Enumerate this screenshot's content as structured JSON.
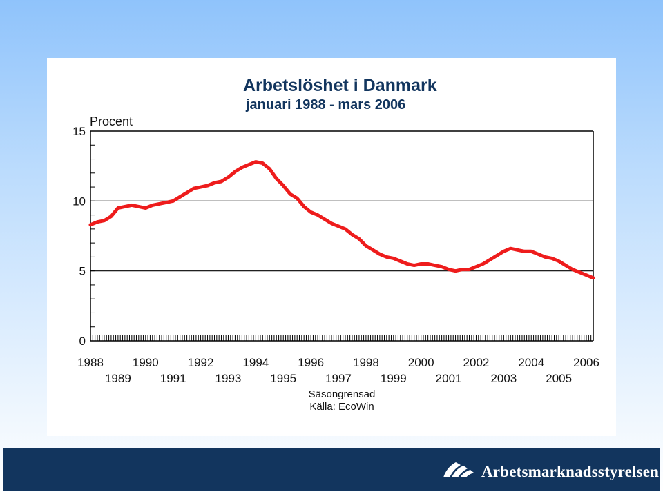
{
  "chart_data": {
    "type": "line",
    "title": "Arbetslöshet i Danmark",
    "subtitle": "januari 1988 - mars 2006",
    "ylabel": "Procent",
    "xlabel": "",
    "ylim": [
      0,
      15
    ],
    "xlim": [
      1988.0,
      2006.25
    ],
    "yticks": [
      {
        "value": 15,
        "label": "15"
      },
      {
        "value": 10,
        "label": "10"
      },
      {
        "value": 5,
        "label": "5"
      },
      {
        "value": 0,
        "label": "0"
      }
    ],
    "xticks_top_row": [
      "1988",
      "1990",
      "1992",
      "1994",
      "1996",
      "1998",
      "2000",
      "2002",
      "2004",
      "2006"
    ],
    "xticks_bottom_row": [
      "1989",
      "1991",
      "1993",
      "1995",
      "1997",
      "1999",
      "2001",
      "2003",
      "2005"
    ],
    "grid_y": [
      10,
      5
    ],
    "notes": [
      "Säsongrensad",
      "Källa: EcoWin"
    ],
    "line_color": "#ee1c1c",
    "series": [
      {
        "x": [
          1988.0,
          1988.25,
          1988.5,
          1988.75,
          1989.0,
          1989.25,
          1989.5,
          1989.75,
          1990.0,
          1990.25,
          1990.5,
          1990.75,
          1991.0,
          1991.25,
          1991.5,
          1991.75,
          1992.0,
          1992.25,
          1992.5,
          1992.75,
          1993.0,
          1993.25,
          1993.5,
          1993.75,
          1994.0,
          1994.25,
          1994.5,
          1994.75,
          1995.0,
          1995.25,
          1995.5,
          1995.75,
          1996.0,
          1996.25,
          1996.5,
          1996.75,
          1997.0,
          1997.25,
          1997.5,
          1997.75,
          1998.0,
          1998.25,
          1998.5,
          1998.75,
          1999.0,
          1999.25,
          1999.5,
          1999.75,
          2000.0,
          2000.25,
          2000.5,
          2000.75,
          2001.0,
          2001.25,
          2001.5,
          2001.75,
          2002.0,
          2002.25,
          2002.5,
          2002.75,
          2003.0,
          2003.25,
          2003.5,
          2003.75,
          2004.0,
          2004.25,
          2004.5,
          2004.75,
          2005.0,
          2005.25,
          2005.5,
          2005.75,
          2006.0,
          2006.25
        ],
        "values": [
          8.3,
          8.5,
          8.6,
          8.9,
          9.5,
          9.6,
          9.7,
          9.6,
          9.5,
          9.7,
          9.8,
          9.9,
          10.0,
          10.3,
          10.6,
          10.9,
          11.0,
          11.1,
          11.3,
          11.4,
          11.7,
          12.1,
          12.4,
          12.6,
          12.8,
          12.7,
          12.3,
          11.6,
          11.1,
          10.5,
          10.2,
          9.6,
          9.2,
          9.0,
          8.7,
          8.4,
          8.2,
          8.0,
          7.6,
          7.3,
          6.8,
          6.5,
          6.2,
          6.0,
          5.9,
          5.7,
          5.5,
          5.4,
          5.5,
          5.5,
          5.4,
          5.3,
          5.1,
          5.0,
          5.1,
          5.1,
          5.3,
          5.5,
          5.8,
          6.1,
          6.4,
          6.6,
          6.5,
          6.4,
          6.4,
          6.2,
          6.0,
          5.9,
          5.7,
          5.4,
          5.1,
          4.9,
          4.7,
          4.5
        ]
      }
    ]
  },
  "footer": {
    "brand_name": "Arbetsmarknadsstyrelsen",
    "logo_label": "AMS logo"
  },
  "colors": {
    "title": "#12355e",
    "footer": "#12355e",
    "line": "#ee1c1c"
  }
}
